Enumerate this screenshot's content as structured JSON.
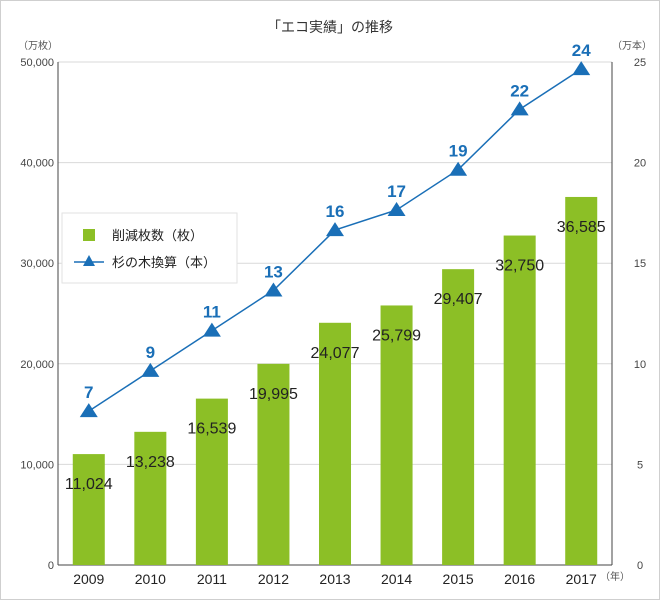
{
  "chart_data": {
    "type": "bar",
    "title": "「エコ実績」の推移",
    "left_axis_unit": "（万枚）",
    "right_axis_unit": "（万本）",
    "x_unit": "（年）",
    "categories": [
      "2009",
      "2010",
      "2011",
      "2012",
      "2013",
      "2014",
      "2015",
      "2016",
      "2017"
    ],
    "y_ticks": [
      "0",
      "10,000",
      "20,000",
      "30,000",
      "40,000",
      "50,000"
    ],
    "y2_ticks": [
      "0",
      "5",
      "10",
      "15",
      "20",
      "25"
    ],
    "ylim": [
      0,
      50000
    ],
    "y2lim": [
      0,
      25
    ],
    "grid": true,
    "legend_position": "left-middle",
    "series": [
      {
        "name": "削減枚数（枚）",
        "type": "bar",
        "axis": "left",
        "color": "#8cbf26",
        "values": [
          11024,
          13238,
          16539,
          19995,
          24077,
          25799,
          29407,
          32750,
          36585
        ],
        "labels": [
          "11,024",
          "13,238",
          "16,539",
          "19,995",
          "24,077",
          "25,799",
          "29,407",
          "32,750",
          "36,585"
        ]
      },
      {
        "name": "杉の木換算（本）",
        "type": "line",
        "axis": "right",
        "color": "#1a6fb7",
        "marker": "triangle",
        "values": [
          7,
          9,
          11,
          13,
          16,
          17,
          19,
          22,
          24
        ],
        "labels": [
          "7",
          "9",
          "11",
          "13",
          "16",
          "17",
          "19",
          "22",
          "24"
        ]
      }
    ]
  }
}
